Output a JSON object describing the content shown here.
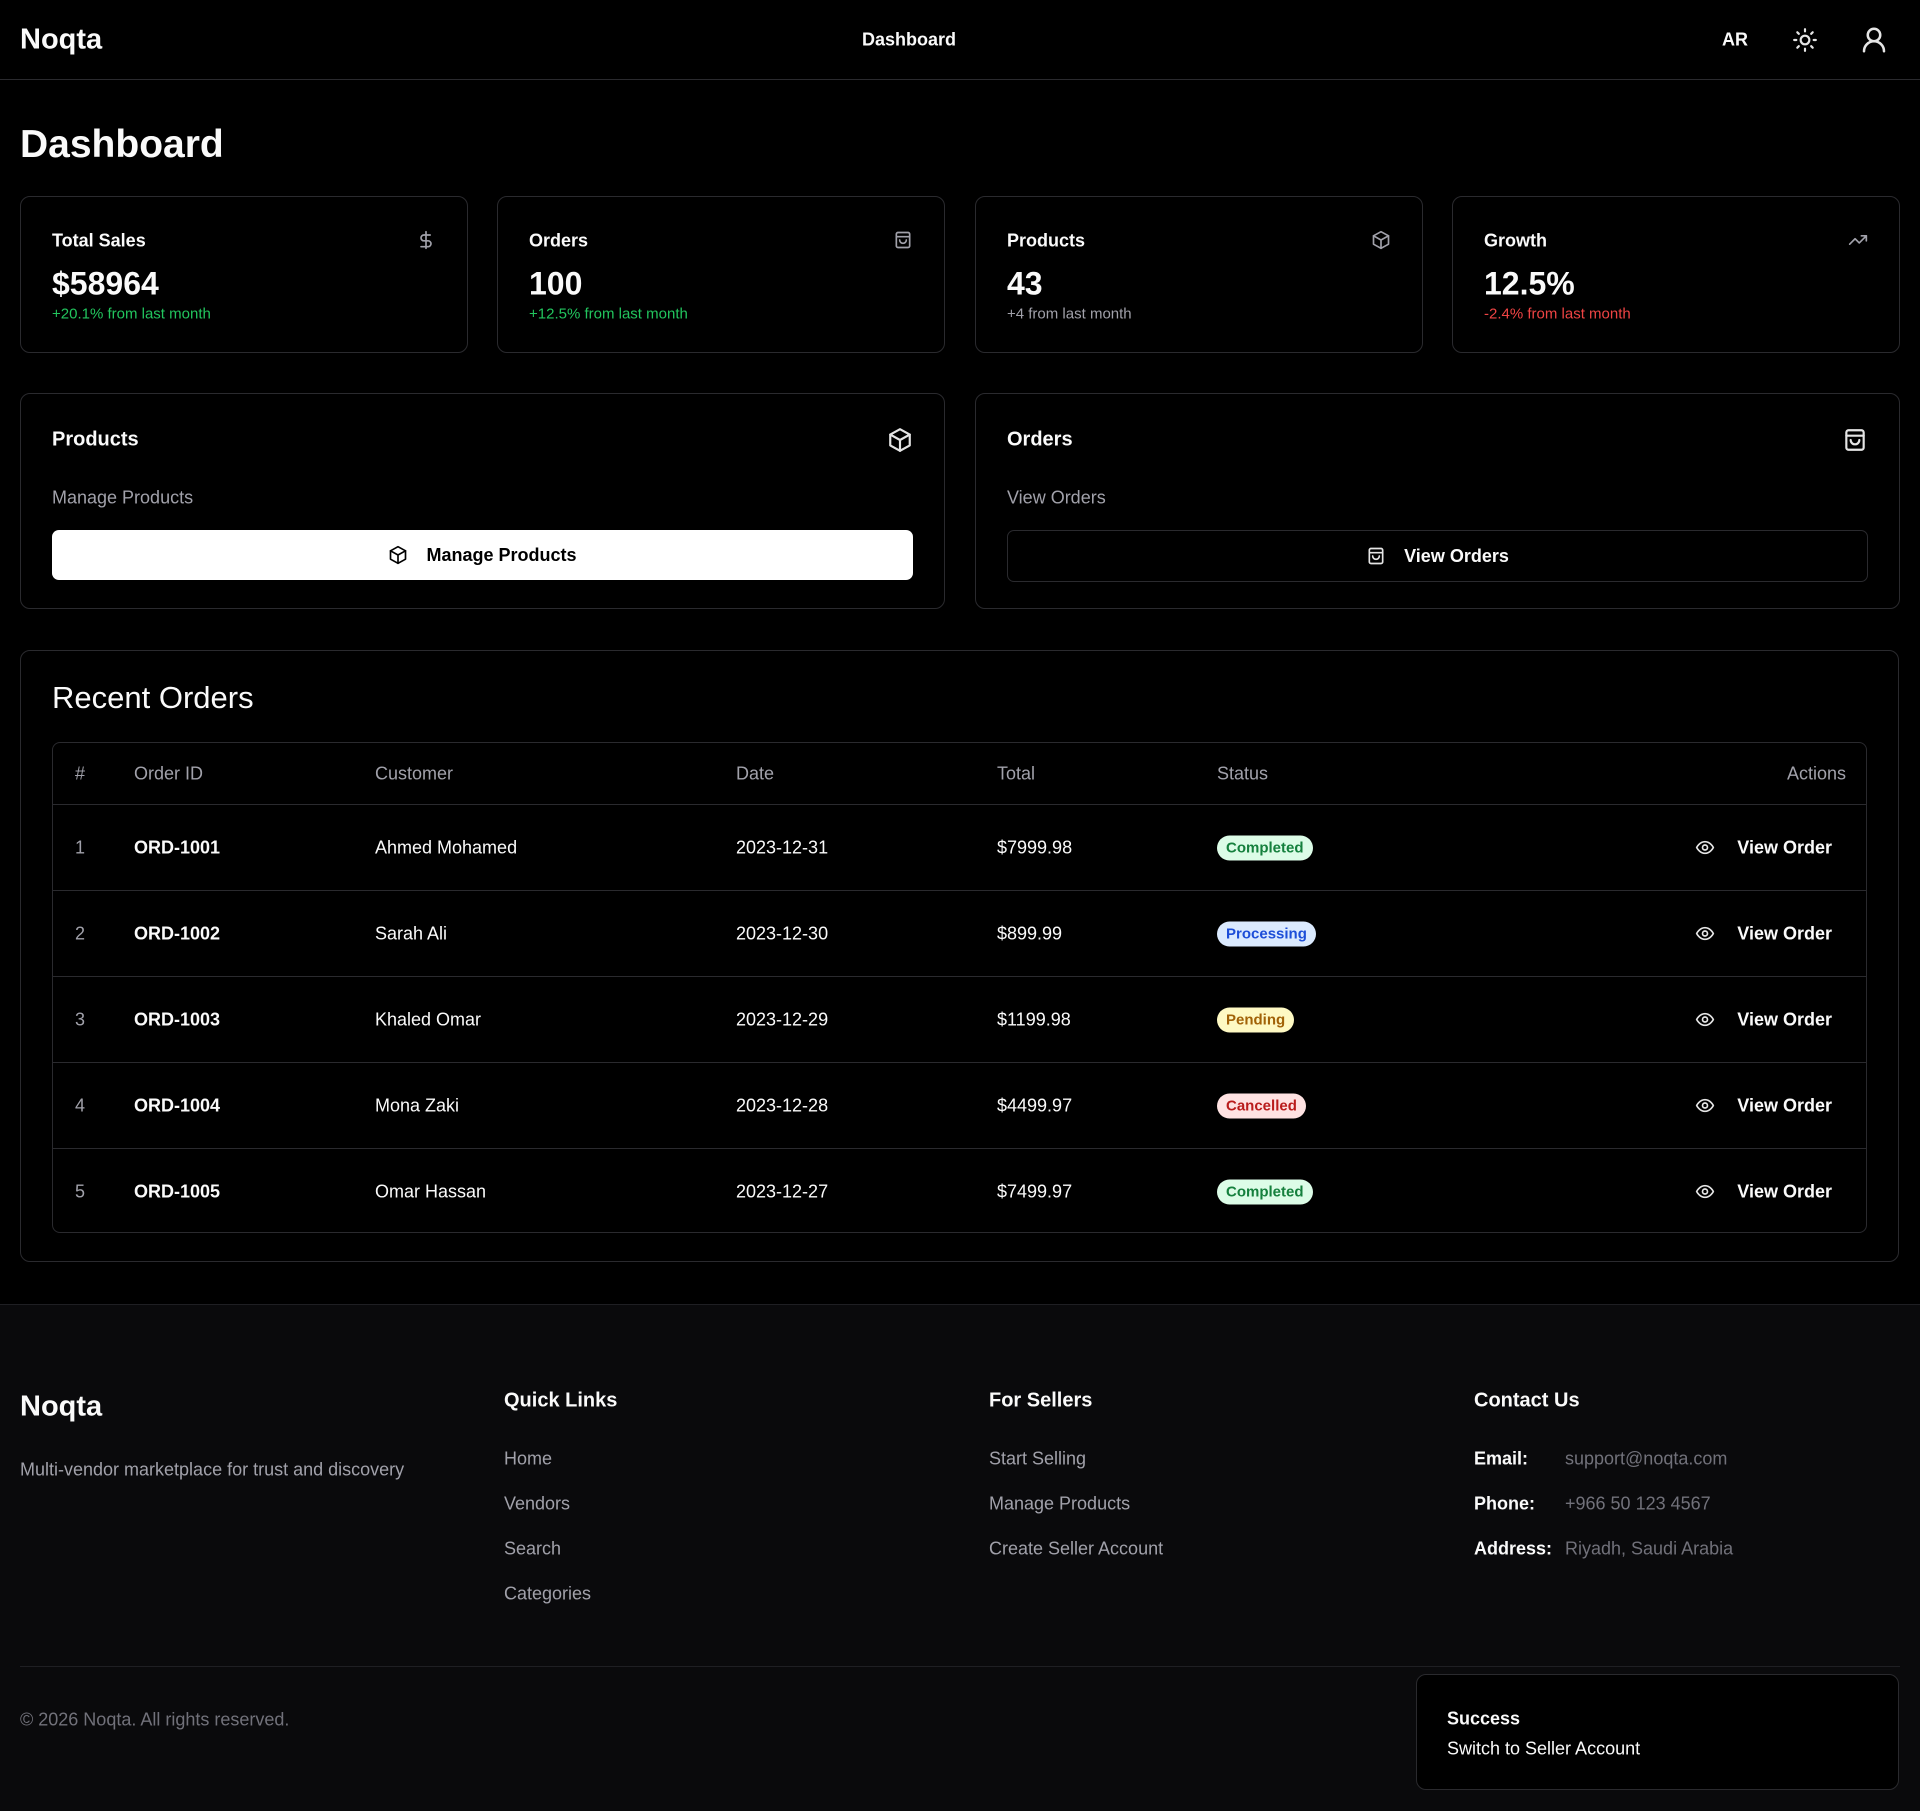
{
  "header": {
    "logo": "Noqta",
    "nav": "Dashboard",
    "lang": "AR"
  },
  "page_title": "Dashboard",
  "stats": [
    {
      "label": "Total Sales",
      "value": "$58964",
      "change": "+20.1% from last month",
      "change_color": "#22c55e",
      "icon": "dollar"
    },
    {
      "label": "Orders",
      "value": "100",
      "change": "+12.5% from last month",
      "change_color": "#22c55e",
      "icon": "bag"
    },
    {
      "label": "Products",
      "value": "43",
      "change": "+4 from last month",
      "change_color": "#a1a1aa",
      "icon": "box"
    },
    {
      "label": "Growth",
      "value": "12.5%",
      "change": "-2.4% from last month",
      "change_color": "#ef4444",
      "icon": "trend"
    }
  ],
  "actions": [
    {
      "title": "Products",
      "description": "Manage Products",
      "button": "Manage Products",
      "icon": "box",
      "primary": true
    },
    {
      "title": "Orders",
      "description": "View Orders",
      "button": "View Orders",
      "icon": "bag",
      "primary": false
    }
  ],
  "recent_orders": {
    "title": "Recent Orders",
    "columns": [
      "#",
      "Order ID",
      "Customer",
      "Date",
      "Total",
      "Status",
      "Actions"
    ],
    "rows": [
      {
        "index": "1",
        "order_id": "ORD-1001",
        "customer": "Ahmed Mohamed",
        "date": "2023-12-31",
        "total": "$7999.98",
        "status": "Completed",
        "status_color": "#15803d",
        "status_bg": "#dcfce7",
        "action": "View Order"
      },
      {
        "index": "2",
        "order_id": "ORD-1002",
        "customer": "Sarah Ali",
        "date": "2023-12-30",
        "total": "$899.99",
        "status": "Processing",
        "status_color": "#1d4ed8",
        "status_bg": "#dbeafe",
        "action": "View Order"
      },
      {
        "index": "3",
        "order_id": "ORD-1003",
        "customer": "Khaled Omar",
        "date": "2023-12-29",
        "total": "$1199.98",
        "status": "Pending",
        "status_color": "#a16207",
        "status_bg": "#fef9c3",
        "action": "View Order"
      },
      {
        "index": "4",
        "order_id": "ORD-1004",
        "customer": "Mona Zaki",
        "date": "2023-12-28",
        "total": "$4499.97",
        "status": "Cancelled",
        "status_color": "#b91c1c",
        "status_bg": "#fee2e2",
        "action": "View Order"
      },
      {
        "index": "5",
        "order_id": "ORD-1005",
        "customer": "Omar Hassan",
        "date": "2023-12-27",
        "total": "$7499.97",
        "status": "Completed",
        "status_color": "#15803d",
        "status_bg": "#dcfce7",
        "action": "View Order"
      }
    ]
  },
  "footer": {
    "logo": "Noqta",
    "tagline": "Multi-vendor marketplace for trust and discovery",
    "quick_links": {
      "title": "Quick Links",
      "links": [
        "Home",
        "Vendors",
        "Search",
        "Categories"
      ]
    },
    "for_sellers": {
      "title": "For Sellers",
      "links": [
        "Start Selling",
        "Manage Products",
        "Create Seller Account"
      ]
    },
    "contact": {
      "title": "Contact Us",
      "items": [
        {
          "label": "Email:",
          "value": "support@noqta.com"
        },
        {
          "label": "Phone:",
          "value": "+966 50 123 4567"
        },
        {
          "label": "Address:",
          "value": "Riyadh, Saudi Arabia"
        }
      ]
    },
    "copyright": "© 2026 Noqta. All rights reserved."
  },
  "toast": {
    "title": "Success",
    "message": "Switch to Seller Account"
  }
}
